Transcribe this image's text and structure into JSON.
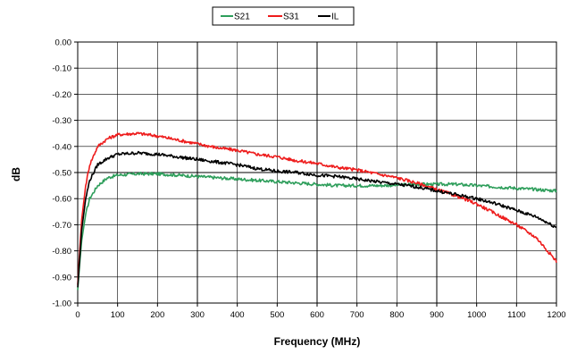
{
  "chart_data": {
    "type": "line",
    "title": "",
    "xlabel": "Frequency (MHz)",
    "ylabel": "dB",
    "xlim": [
      0,
      1200
    ],
    "ylim": [
      -1.0,
      0.0
    ],
    "x_ticks": [
      0,
      100,
      200,
      300,
      400,
      500,
      600,
      700,
      800,
      900,
      1000,
      1100,
      1200
    ],
    "y_ticks": [
      0.0,
      -0.1,
      -0.2,
      -0.3,
      -0.4,
      -0.5,
      -0.6,
      -0.7,
      -0.8,
      -0.9,
      -1.0
    ],
    "y_tick_labels": [
      "0.00",
      "-0.10",
      "-0.20",
      "-0.30",
      "-0.40",
      "-0.50",
      "-0.60",
      "-0.70",
      "-0.80",
      "-0.90",
      "-1.00"
    ],
    "grid": true,
    "legend_position": "top-center",
    "series": [
      {
        "name": "S21",
        "color": "#2e9e5b",
        "x": [
          0,
          5,
          10,
          20,
          30,
          50,
          75,
          100,
          150,
          200,
          250,
          300,
          350,
          400,
          450,
          500,
          550,
          600,
          650,
          700,
          750,
          800,
          850,
          900,
          950,
          1000,
          1050,
          1100,
          1150,
          1200
        ],
        "y": [
          -0.95,
          -0.85,
          -0.76,
          -0.66,
          -0.6,
          -0.55,
          -0.52,
          -0.51,
          -0.505,
          -0.505,
          -0.51,
          -0.515,
          -0.52,
          -0.525,
          -0.53,
          -0.535,
          -0.54,
          -0.545,
          -0.55,
          -0.55,
          -0.55,
          -0.548,
          -0.545,
          -0.545,
          -0.545,
          -0.55,
          -0.555,
          -0.56,
          -0.565,
          -0.57
        ]
      },
      {
        "name": "S31",
        "color": "#ee1c1c",
        "x": [
          0,
          5,
          10,
          20,
          30,
          50,
          75,
          100,
          150,
          200,
          250,
          300,
          350,
          400,
          450,
          500,
          550,
          600,
          650,
          700,
          750,
          800,
          850,
          900,
          950,
          1000,
          1050,
          1100,
          1150,
          1200
        ],
        "y": [
          -0.93,
          -0.8,
          -0.68,
          -0.55,
          -0.47,
          -0.4,
          -0.37,
          -0.355,
          -0.35,
          -0.36,
          -0.375,
          -0.39,
          -0.405,
          -0.415,
          -0.43,
          -0.44,
          -0.455,
          -0.465,
          -0.48,
          -0.49,
          -0.505,
          -0.52,
          -0.54,
          -0.565,
          -0.59,
          -0.62,
          -0.66,
          -0.7,
          -0.75,
          -0.84
        ]
      },
      {
        "name": "IL",
        "color": "#000000",
        "x": [
          0,
          5,
          10,
          20,
          30,
          50,
          75,
          100,
          150,
          200,
          250,
          300,
          350,
          400,
          450,
          500,
          550,
          600,
          650,
          700,
          750,
          800,
          850,
          900,
          950,
          1000,
          1050,
          1100,
          1150,
          1200
        ],
        "y": [
          -0.94,
          -0.83,
          -0.72,
          -0.6,
          -0.53,
          -0.47,
          -0.445,
          -0.43,
          -0.425,
          -0.43,
          -0.44,
          -0.45,
          -0.46,
          -0.47,
          -0.485,
          -0.495,
          -0.5,
          -0.51,
          -0.515,
          -0.525,
          -0.535,
          -0.545,
          -0.555,
          -0.57,
          -0.585,
          -0.6,
          -0.62,
          -0.645,
          -0.67,
          -0.71
        ]
      }
    ]
  }
}
